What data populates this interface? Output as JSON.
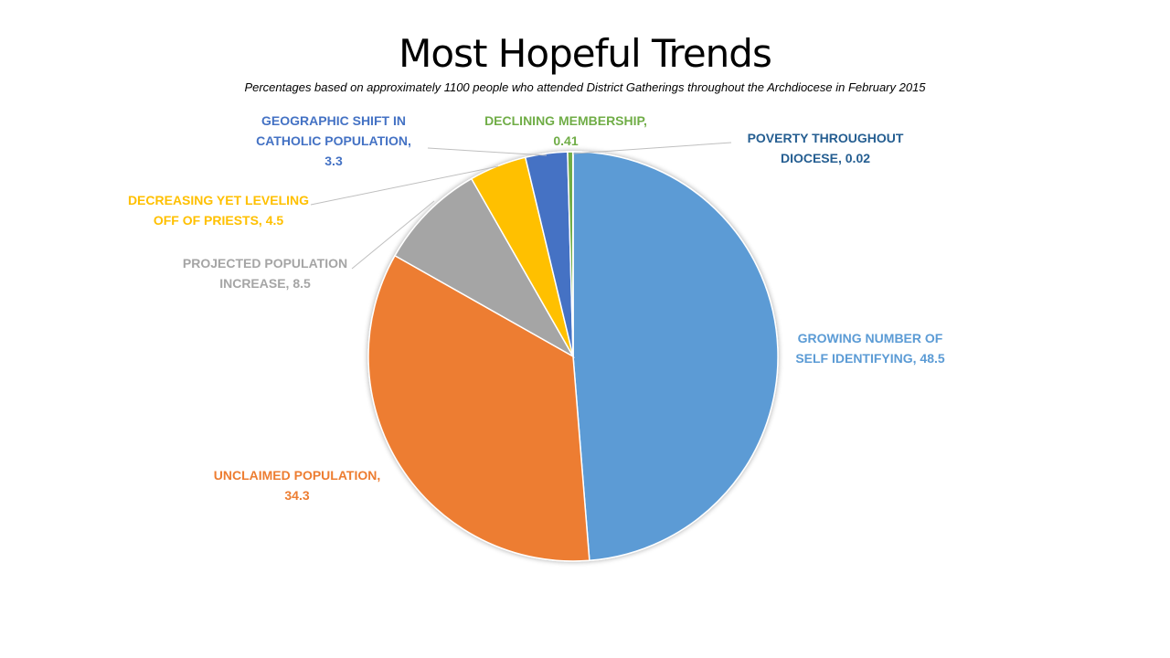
{
  "slide": {
    "title": "Most Hopeful Trends",
    "subtitle": "Percentages based on approximately 1100 people who attended District Gatherings throughout the Archdiocese  in February 2015"
  },
  "chart_data": {
    "type": "pie",
    "title": "Most Hopeful Trends",
    "subtitle": "Percentages based on approximately 1100 people who attended District Gatherings throughout the Archdiocese  in February 2015",
    "start_angle_deg": 0,
    "direction": "clockwise",
    "slices": [
      {
        "name": "GROWING NUMBER OF SELF IDENTIFYING",
        "value": 48.5,
        "label_lines": [
          "GROWING NUMBER OF",
          "SELF IDENTIFYING, 48.5"
        ],
        "color": "#5B9BD5"
      },
      {
        "name": "UNCLAIMED POPULATION",
        "value": 34.3,
        "label_lines": [
          "UNCLAIMED POPULATION,",
          "34.3"
        ],
        "color": "#ED7D31"
      },
      {
        "name": "PROJECTED POPULATION INCREASE",
        "value": 8.5,
        "label_lines": [
          "PROJECTED POPULATION",
          "INCREASE, 8.5"
        ],
        "color": "#A5A5A5"
      },
      {
        "name": "DECREASING YET LEVELING OFF OF PRIESTS",
        "value": 4.5,
        "label_lines": [
          "DECREASING YET LEVELING",
          "OFF OF PRIESTS, 4.5"
        ],
        "color": "#FFC000"
      },
      {
        "name": "GEOGRAPHIC SHIFT IN CATHOLIC POPULATION",
        "value": 3.3,
        "label_lines": [
          "GEOGRAPHIC SHIFT IN",
          "CATHOLIC POPULATION,",
          "3.3"
        ],
        "color": "#4472C4"
      },
      {
        "name": "DECLINING MEMBERSHIP",
        "value": 0.41,
        "label_lines": [
          "DECLINING MEMBERSHIP,",
          "0.41"
        ],
        "color": "#70AD47"
      },
      {
        "name": "POVERTY THROUGHOUT DIOCESE",
        "value": 0.02,
        "label_lines": [
          "POVERTY THROUGHOUT",
          "DIOCESE, 0.02"
        ],
        "color": "#255E91"
      }
    ],
    "legend": "none",
    "data_labels": "outside"
  }
}
